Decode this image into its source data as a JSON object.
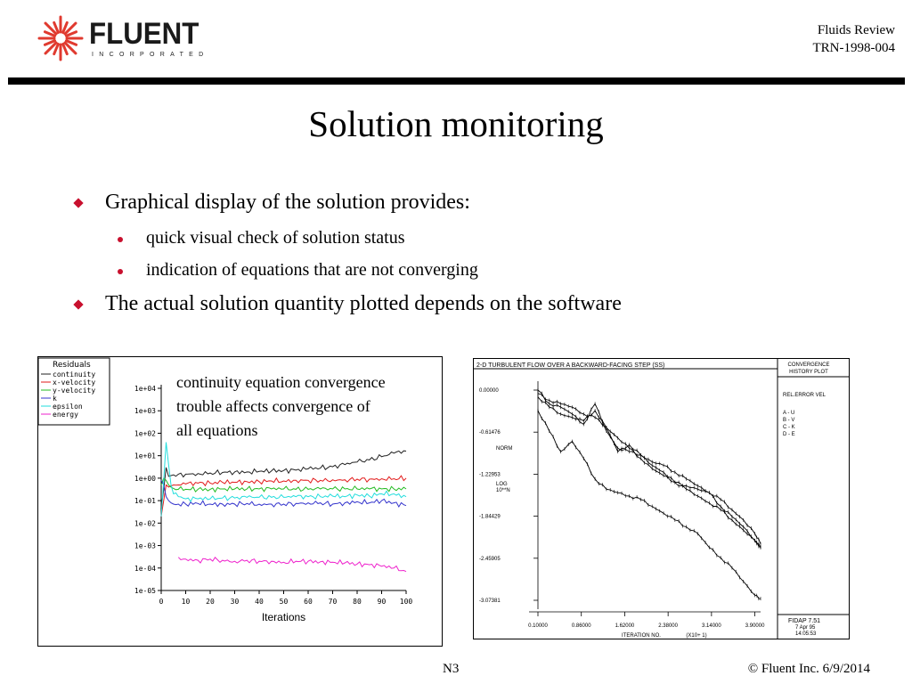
{
  "header": {
    "logo_word": "FLUENT",
    "logo_sub": "INCORPORATED",
    "right_line1": "Fluids Review",
    "right_line2": "TRN-1998-004"
  },
  "title": "Solution monitoring",
  "bullets": [
    {
      "text": "Graphical display of the solution provides:",
      "subs": [
        "quick visual check of solution status",
        "indication of equations that are not converging"
      ]
    },
    {
      "text": "The actual solution quantity plotted depends on the software",
      "subs": []
    }
  ],
  "colors": {
    "accent": "#c8102e"
  },
  "annotation": {
    "line1": "continuity equation convergence",
    "line2": "trouble affects convergence of",
    "line3": "all equations"
  },
  "chart_data": [
    {
      "type": "line",
      "xlabel": "Iterations",
      "ylabel": "",
      "log_scale_y": true,
      "xlim": [
        0,
        100
      ],
      "ylim": [
        1e-05,
        10000.0
      ],
      "x_ticks": [
        "0",
        "10",
        "20",
        "30",
        "40",
        "50",
        "60",
        "70",
        "80",
        "90",
        "100"
      ],
      "y_ticks": [
        "1e+04",
        "1e+03",
        "1e+02",
        "1e+01",
        "1e+00",
        "1e-01",
        "1e-02",
        "1e-03",
        "1e-04",
        "1e-05"
      ],
      "legend_title": "Residuals",
      "legend_position": "top-left",
      "x": [
        0,
        1,
        2,
        3,
        4,
        5,
        7,
        10,
        15,
        20,
        25,
        30,
        35,
        40,
        45,
        50,
        55,
        60,
        65,
        70,
        75,
        80,
        85,
        90,
        95,
        100
      ],
      "series": [
        {
          "name": "continuity",
          "color": "#222222",
          "values": [
            0.05,
            0.3,
            3,
            1.2,
            1.3,
            1.4,
            1.5,
            1.5,
            1.6,
            1.7,
            1.8,
            1.9,
            1.9,
            2.0,
            2.1,
            2.2,
            2.3,
            2.6,
            2.8,
            3.2,
            4.0,
            5.2,
            6.5,
            9.0,
            13,
            16
          ]
        },
        {
          "name": "x-velocity",
          "color": "#e21a1a",
          "values": [
            0.02,
            0.1,
            0.5,
            0.4,
            0.45,
            0.5,
            0.5,
            0.55,
            0.6,
            0.6,
            0.65,
            0.65,
            0.7,
            0.7,
            0.75,
            0.75,
            0.8,
            0.8,
            0.8,
            0.85,
            0.85,
            0.9,
            0.9,
            0.95,
            0.95,
            1.0
          ]
        },
        {
          "name": "y-velocity",
          "color": "#22bb22",
          "values": [
            0.5,
            1.0,
            0.8,
            0.5,
            0.4,
            0.35,
            0.32,
            0.32,
            0.32,
            0.32,
            0.33,
            0.33,
            0.33,
            0.33,
            0.33,
            0.33,
            0.32,
            0.32,
            0.33,
            0.33,
            0.33,
            0.33,
            0.33,
            0.33,
            0.33,
            0.33
          ]
        },
        {
          "name": "k",
          "color": "#3333cc",
          "values": [
            0.8,
            0.5,
            0.15,
            0.1,
            0.08,
            0.07,
            0.07,
            0.07,
            0.075,
            0.07,
            0.07,
            0.07,
            0.075,
            0.07,
            0.07,
            0.07,
            0.075,
            0.08,
            0.08,
            0.07,
            0.08,
            0.09,
            0.08,
            0.1,
            0.08,
            0.06
          ]
        },
        {
          "name": "epsilon",
          "color": "#22dddd",
          "values": [
            0.02,
            0.8,
            40,
            4,
            0.5,
            0.2,
            0.15,
            0.12,
            0.12,
            0.12,
            0.13,
            0.13,
            0.14,
            0.14,
            0.14,
            0.14,
            0.15,
            0.15,
            0.15,
            0.16,
            0.15,
            0.18,
            0.16,
            0.2,
            0.2,
            0.15
          ]
        },
        {
          "name": "energy",
          "color": "#ee22cc",
          "values": [
            null,
            null,
            null,
            null,
            null,
            null,
            0.0003,
            0.00025,
            0.00022,
            0.00025,
            0.00022,
            0.0002,
            0.00022,
            0.0002,
            0.0002,
            0.00018,
            0.0002,
            0.0002,
            0.00019,
            0.00018,
            0.00017,
            0.00015,
            0.00014,
            0.00012,
            0.0001,
            7e-05
          ]
        }
      ]
    },
    {
      "type": "line",
      "title": "2-D TURBULENT FLOW OVER A BACKWARD-FACING STEP (SS)",
      "side_title": "CONVERGENCE HISTORY PLOT",
      "side_subtitle": "REL.ERROR VEL",
      "side_legend": [
        "A - U",
        "B - V",
        "C - K",
        "D - E"
      ],
      "ylabel_lines": [
        "NORM",
        "LOG",
        "10**N"
      ],
      "xlabel": "ITERATION NO.",
      "xlabel_scale": "(X10+ 1)",
      "y_ticks": [
        "0.00000",
        "-0.61476",
        "-1.22953",
        "-1.84429",
        "-2.45905",
        "-3.07381"
      ],
      "x_ticks": [
        "0.10000",
        "0.86000",
        "1.62000",
        "2.38000",
        "3.14000",
        "3.90000"
      ],
      "xlim": [
        0.1,
        4.0
      ],
      "ylim": [
        -3.07381,
        0.0
      ],
      "footer": [
        "FIDAP 7.51",
        "7 Apr 95",
        "14:05:53"
      ],
      "x": [
        0.1,
        0.3,
        0.5,
        0.7,
        0.9,
        1.1,
        1.3,
        1.5,
        1.7,
        1.9,
        2.1,
        2.3,
        2.5,
        2.7,
        2.9,
        3.1,
        3.3,
        3.5,
        3.7,
        3.9,
        4.0
      ],
      "series": [
        {
          "name": "A",
          "color": "#000000",
          "values": [
            0.0,
            -0.2,
            -0.25,
            -0.35,
            -0.5,
            -0.2,
            -0.6,
            -0.85,
            -0.9,
            -0.95,
            -1.05,
            -1.1,
            -1.2,
            -1.3,
            -1.4,
            -1.5,
            -1.6,
            -1.75,
            -1.9,
            -2.1,
            -2.25
          ]
        },
        {
          "name": "B",
          "color": "#000000",
          "values": [
            -0.1,
            -0.25,
            -0.35,
            -0.4,
            -0.45,
            -0.3,
            -0.55,
            -0.9,
            -0.8,
            -0.95,
            -1.1,
            -1.2,
            -1.35,
            -1.4,
            -1.45,
            -1.5,
            -1.7,
            -1.85,
            -2.0,
            -2.2,
            -2.3
          ]
        },
        {
          "name": "C",
          "color": "#000000",
          "values": [
            -0.05,
            -0.15,
            -0.2,
            -0.25,
            -0.35,
            -0.4,
            -0.55,
            -0.7,
            -0.85,
            -1.0,
            -1.15,
            -1.25,
            -1.35,
            -1.45,
            -1.55,
            -1.65,
            -1.75,
            -1.9,
            -2.05,
            -2.2,
            -2.3
          ]
        },
        {
          "name": "D",
          "color": "#000000",
          "values": [
            -0.3,
            -0.6,
            -0.9,
            -0.75,
            -1.0,
            -1.3,
            -1.45,
            -1.5,
            -1.55,
            -1.6,
            -1.7,
            -1.8,
            -1.9,
            -2.0,
            -2.1,
            -2.3,
            -2.45,
            -2.6,
            -2.8,
            -3.0,
            -3.05
          ]
        }
      ]
    }
  ],
  "footer": {
    "left": "N3",
    "right": "© Fluent Inc. 6/9/2014"
  }
}
